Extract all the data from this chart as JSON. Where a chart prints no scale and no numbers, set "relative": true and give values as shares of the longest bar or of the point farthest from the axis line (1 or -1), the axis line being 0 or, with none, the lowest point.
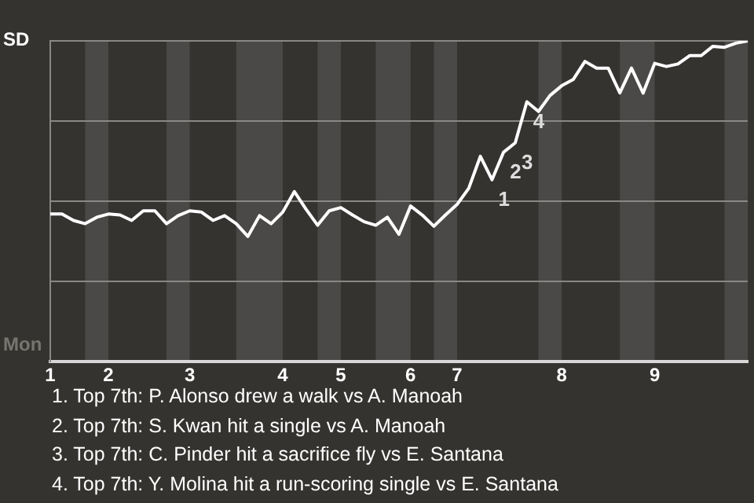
{
  "chart_data": {
    "type": "line",
    "relative": true,
    "grid": "y",
    "legend": false,
    "marker": "none",
    "line_style": "solid",
    "categories": [
      "1",
      null,
      null,
      null,
      null,
      "2",
      null,
      null,
      null,
      null,
      null,
      null,
      "3",
      null,
      null,
      null,
      null,
      null,
      null,
      null,
      "4",
      null,
      null,
      null,
      null,
      "5",
      null,
      null,
      null,
      null,
      null,
      "6",
      null,
      null,
      null,
      "7",
      null,
      null,
      null,
      null,
      null,
      null,
      null,
      null,
      "8",
      null,
      null,
      null,
      null,
      null,
      null,
      null,
      "9",
      null,
      null,
      null,
      null,
      null,
      null,
      null,
      null
    ],
    "series": [
      {
        "color": "#ffffff",
        "values": [
          0.46,
          0.46,
          0.44,
          0.43,
          0.45,
          0.46,
          0.457,
          0.44,
          0.47,
          0.47,
          0.43,
          0.455,
          0.47,
          0.466,
          0.44,
          0.455,
          0.43,
          0.39,
          0.455,
          0.43,
          0.466,
          0.53,
          0.475,
          0.425,
          0.47,
          0.48,
          0.457,
          0.436,
          0.425,
          0.45,
          0.397,
          0.485,
          0.457,
          0.422,
          0.457,
          0.49,
          0.54,
          0.64,
          0.567,
          0.653,
          0.682,
          0.81,
          0.78,
          0.83,
          0.86,
          0.88,
          0.936,
          0.915,
          0.915,
          0.838,
          0.915,
          0.837,
          0.93,
          0.92,
          0.928,
          0.954,
          0.954,
          0.983,
          0.98,
          0.993,
          1
        ]
      }
    ],
    "annotations": [
      "SD",
      "Mon",
      "1",
      {
        "text": "2",
        "y": 0.653
      },
      "3",
      {
        "text": "4",
        "y": 0.81
      },
      "1. Top 7th: P. Alonso drew a walk vs A. Manoah",
      "2. Top 7th: S. Kwan hit a single vs A. Manoah",
      "3. Top 7th: C. Pinder hit a sacrifice fly vs E. Santana",
      "4. Top 7th: Y. Molina hit a run-scoring single vs E. Santana"
    ]
  }
}
